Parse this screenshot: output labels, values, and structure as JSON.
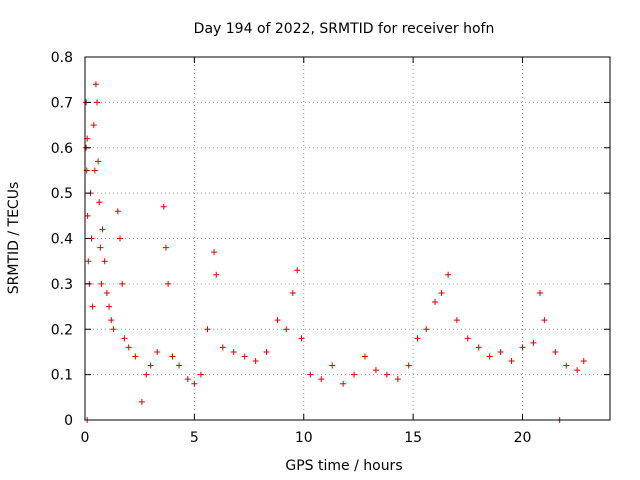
{
  "chart_data": {
    "type": "scatter",
    "title": "Day 194 of 2022, SRMTID for receiver hofn",
    "xlabel": "GPS time / hours",
    "ylabel": "SRMTID / TECUs",
    "xlim": [
      0,
      24
    ],
    "ylim": [
      0,
      0.8
    ],
    "xticks": [
      "0",
      "5",
      "10",
      "15",
      "20"
    ],
    "yticks": [
      "0",
      "0.1",
      "0.2",
      "0.3",
      "0.4",
      "0.5",
      "0.6",
      "0.7",
      "0.8"
    ],
    "grid": true,
    "marker": "+",
    "series": [
      {
        "name": "SRMTID",
        "color": "#e00000",
        "samples": [
          [
            0.05,
            0.7
          ],
          [
            0.05,
            0.6
          ],
          [
            0.08,
            0.55
          ],
          [
            0.1,
            0.62
          ],
          [
            0.12,
            0.45
          ],
          [
            0.15,
            0.35
          ],
          [
            0.2,
            0.3
          ],
          [
            0.25,
            0.5
          ],
          [
            0.3,
            0.4
          ],
          [
            0.35,
            0.25
          ],
          [
            0.4,
            0.65
          ],
          [
            0.45,
            0.55
          ],
          [
            0.5,
            0.74
          ],
          [
            0.55,
            0.7
          ],
          [
            0.6,
            0.57
          ],
          [
            0.65,
            0.48
          ],
          [
            0.7,
            0.38
          ],
          [
            0.75,
            0.3
          ],
          [
            0.8,
            0.42
          ],
          [
            0.9,
            0.35
          ],
          [
            1.0,
            0.28
          ],
          [
            1.1,
            0.25
          ],
          [
            1.2,
            0.22
          ],
          [
            1.3,
            0.2
          ],
          [
            1.5,
            0.46
          ],
          [
            1.6,
            0.4
          ],
          [
            1.7,
            0.3
          ],
          [
            1.8,
            0.18
          ],
          [
            2.0,
            0.16
          ],
          [
            2.3,
            0.14
          ],
          [
            2.6,
            0.04
          ],
          [
            2.8,
            0.1
          ],
          [
            3.0,
            0.12
          ],
          [
            3.3,
            0.15
          ],
          [
            3.6,
            0.47
          ],
          [
            3.7,
            0.38
          ],
          [
            3.8,
            0.3
          ],
          [
            4.0,
            0.14
          ],
          [
            4.3,
            0.12
          ],
          [
            4.7,
            0.09
          ],
          [
            5.0,
            0.08
          ],
          [
            5.3,
            0.1
          ],
          [
            5.6,
            0.2
          ],
          [
            5.9,
            0.37
          ],
          [
            6.0,
            0.32
          ],
          [
            6.3,
            0.16
          ],
          [
            6.8,
            0.15
          ],
          [
            7.3,
            0.14
          ],
          [
            7.8,
            0.13
          ],
          [
            8.3,
            0.15
          ],
          [
            8.8,
            0.22
          ],
          [
            9.2,
            0.2
          ],
          [
            9.5,
            0.28
          ],
          [
            9.7,
            0.33
          ],
          [
            9.9,
            0.18
          ],
          [
            10.3,
            0.1
          ],
          [
            10.8,
            0.09
          ],
          [
            11.3,
            0.12
          ],
          [
            11.8,
            0.08
          ],
          [
            12.3,
            0.1
          ],
          [
            12.8,
            0.14
          ],
          [
            13.3,
            0.11
          ],
          [
            13.8,
            0.1
          ],
          [
            14.3,
            0.09
          ],
          [
            14.8,
            0.12
          ],
          [
            15.2,
            0.18
          ],
          [
            15.6,
            0.2
          ],
          [
            16.0,
            0.26
          ],
          [
            16.3,
            0.28
          ],
          [
            16.6,
            0.32
          ],
          [
            17.0,
            0.22
          ],
          [
            17.5,
            0.18
          ],
          [
            18.0,
            0.16
          ],
          [
            18.5,
            0.14
          ],
          [
            19.0,
            0.15
          ],
          [
            19.5,
            0.13
          ],
          [
            20.0,
            0.16
          ],
          [
            20.5,
            0.17
          ],
          [
            20.8,
            0.28
          ],
          [
            21.0,
            0.22
          ],
          [
            21.5,
            0.15
          ],
          [
            22.0,
            0.12
          ],
          [
            22.5,
            0.11
          ],
          [
            22.8,
            0.13
          ],
          [
            0.1,
            0.0
          ],
          [
            21.7,
            0.0
          ]
        ]
      }
    ]
  }
}
